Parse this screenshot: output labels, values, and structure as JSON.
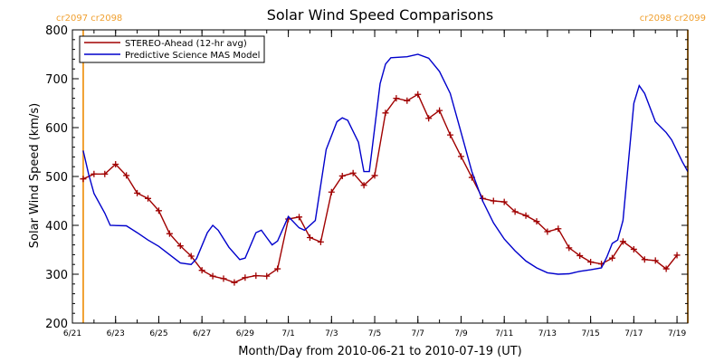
{
  "chart_data": {
    "type": "line",
    "title": "Solar Wind Speed Comparisons",
    "xlabel": "Month/Day from 2010-06-21 to 2010-07-19 (UT)",
    "ylabel": "Solar Wind Speed (km/s)",
    "xlim": [
      "2010-06-21T00:00",
      "2010-07-19T12:00"
    ],
    "ylim": [
      200,
      800
    ],
    "yticks": [
      200,
      300,
      400,
      500,
      600,
      700,
      800
    ],
    "xticks": [
      {
        "date": "2010-06-21",
        "label": "6/21"
      },
      {
        "date": "2010-06-23",
        "label": "6/23"
      },
      {
        "date": "2010-06-25",
        "label": "6/25"
      },
      {
        "date": "2010-06-27",
        "label": "6/27"
      },
      {
        "date": "2010-06-29",
        "label": "6/29"
      },
      {
        "date": "2010-07-01",
        "label": "7/1"
      },
      {
        "date": "2010-07-03",
        "label": "7/3"
      },
      {
        "date": "2010-07-05",
        "label": "7/5"
      },
      {
        "date": "2010-07-07",
        "label": "7/7"
      },
      {
        "date": "2010-07-09",
        "label": "7/9"
      },
      {
        "date": "2010-07-11",
        "label": "7/11"
      },
      {
        "date": "2010-07-13",
        "label": "7/13"
      },
      {
        "date": "2010-07-15",
        "label": "7/15"
      },
      {
        "date": "2010-07-17",
        "label": "7/17"
      },
      {
        "date": "2010-07-19",
        "label": "7/19"
      }
    ],
    "legend_position": "top-left",
    "grid": false,
    "carrington_markers": [
      {
        "date": "2010-06-21T12:00",
        "label": "cr2097 cr2098",
        "side": "left"
      },
      {
        "date": "2010-07-19T12:00",
        "label": "cr2098 cr2099",
        "side": "right"
      }
    ],
    "series": [
      {
        "name": "STEREO-Ahead (12-hr avg)",
        "color": "#a00000",
        "marker": "plus",
        "points": [
          [
            "2010-06-21T12:00",
            495
          ],
          [
            "2010-06-22T00:00",
            505
          ],
          [
            "2010-06-22T12:00",
            505
          ],
          [
            "2010-06-23T00:00",
            525
          ],
          [
            "2010-06-23T12:00",
            502
          ],
          [
            "2010-06-24T00:00",
            466
          ],
          [
            "2010-06-24T12:00",
            455
          ],
          [
            "2010-06-25T00:00",
            430
          ],
          [
            "2010-06-25T12:00",
            383
          ],
          [
            "2010-06-26T00:00",
            358
          ],
          [
            "2010-06-26T12:00",
            337
          ],
          [
            "2010-06-27T00:00",
            308
          ],
          [
            "2010-06-27T12:00",
            296
          ],
          [
            "2010-06-28T00:00",
            291
          ],
          [
            "2010-06-28T12:00",
            283
          ],
          [
            "2010-06-29T00:00",
            293
          ],
          [
            "2010-06-29T12:00",
            297
          ],
          [
            "2010-06-30T00:00",
            296
          ],
          [
            "2010-06-30T12:00",
            311
          ],
          [
            "2010-07-01T00:00",
            413
          ],
          [
            "2010-07-01T12:00",
            417
          ],
          [
            "2010-07-02T00:00",
            375
          ],
          [
            "2010-07-02T12:00",
            366
          ],
          [
            "2010-07-03T00:00",
            468
          ],
          [
            "2010-07-03T12:00",
            501
          ],
          [
            "2010-07-04T00:00",
            507
          ],
          [
            "2010-07-04T12:00",
            482
          ],
          [
            "2010-07-05T00:00",
            502
          ],
          [
            "2010-07-05T12:00",
            630
          ],
          [
            "2010-07-06T00:00",
            660
          ],
          [
            "2010-07-06T12:00",
            655
          ],
          [
            "2010-07-07T00:00",
            668
          ],
          [
            "2010-07-07T12:00",
            619
          ],
          [
            "2010-07-08T00:00",
            635
          ],
          [
            "2010-07-08T12:00",
            585
          ],
          [
            "2010-07-09T00:00",
            541
          ],
          [
            "2010-07-09T12:00",
            498
          ],
          [
            "2010-07-10T00:00",
            455
          ],
          [
            "2010-07-10T12:00",
            450
          ],
          [
            "2010-07-11T00:00",
            448
          ],
          [
            "2010-07-11T12:00",
            428
          ],
          [
            "2010-07-12T00:00",
            420
          ],
          [
            "2010-07-12T12:00",
            408
          ],
          [
            "2010-07-13T00:00",
            387
          ],
          [
            "2010-07-13T12:00",
            393
          ],
          [
            "2010-07-14T00:00",
            354
          ],
          [
            "2010-07-14T12:00",
            338
          ],
          [
            "2010-07-15T00:00",
            325
          ],
          [
            "2010-07-15T12:00",
            321
          ],
          [
            "2010-07-16T00:00",
            333
          ],
          [
            "2010-07-16T12:00",
            367
          ],
          [
            "2010-07-17T00:00",
            351
          ],
          [
            "2010-07-17T12:00",
            330
          ],
          [
            "2010-07-18T00:00",
            328
          ],
          [
            "2010-07-18T12:00",
            311
          ],
          [
            "2010-07-19T00:00",
            339
          ]
        ]
      },
      {
        "name": "Predictive Science MAS Model",
        "color": "#0000cc",
        "marker": "none",
        "points": [
          [
            "2010-06-21T12:00",
            553
          ],
          [
            "2010-06-21T18:00",
            505
          ],
          [
            "2010-06-22T00:00",
            465
          ],
          [
            "2010-06-22T12:00",
            425
          ],
          [
            "2010-06-22T18:00",
            400
          ],
          [
            "2010-06-23T12:00",
            399
          ],
          [
            "2010-06-24T00:00",
            385
          ],
          [
            "2010-06-24T12:00",
            370
          ],
          [
            "2010-06-25T00:00",
            357
          ],
          [
            "2010-06-25T12:00",
            340
          ],
          [
            "2010-06-26T00:00",
            323
          ],
          [
            "2010-06-26T12:00",
            320
          ],
          [
            "2010-06-26T18:00",
            332
          ],
          [
            "2010-06-27T06:00",
            385
          ],
          [
            "2010-06-27T12:00",
            400
          ],
          [
            "2010-06-27T18:00",
            390
          ],
          [
            "2010-06-28T06:00",
            355
          ],
          [
            "2010-06-28T18:00",
            330
          ],
          [
            "2010-06-29T00:00",
            333
          ],
          [
            "2010-06-29T12:00",
            385
          ],
          [
            "2010-06-29T18:00",
            390
          ],
          [
            "2010-06-30T00:00",
            375
          ],
          [
            "2010-06-30T06:00",
            360
          ],
          [
            "2010-06-30T12:00",
            368
          ],
          [
            "2010-07-01T00:00",
            418
          ],
          [
            "2010-07-01T12:00",
            395
          ],
          [
            "2010-07-01T18:00",
            390
          ],
          [
            "2010-07-02T06:00",
            410
          ],
          [
            "2010-07-02T18:00",
            555
          ],
          [
            "2010-07-03T06:00",
            612
          ],
          [
            "2010-07-03T12:00",
            620
          ],
          [
            "2010-07-03T18:00",
            615
          ],
          [
            "2010-07-04T06:00",
            570
          ],
          [
            "2010-07-04T12:00",
            510
          ],
          [
            "2010-07-04T18:00",
            510
          ],
          [
            "2010-07-05T06:00",
            690
          ],
          [
            "2010-07-05T12:00",
            730
          ],
          [
            "2010-07-05T18:00",
            743
          ],
          [
            "2010-07-06T12:00",
            745
          ],
          [
            "2010-07-07T00:00",
            750
          ],
          [
            "2010-07-07T12:00",
            742
          ],
          [
            "2010-07-08T00:00",
            715
          ],
          [
            "2010-07-08T12:00",
            670
          ],
          [
            "2010-07-09T00:00",
            590
          ],
          [
            "2010-07-09T12:00",
            510
          ],
          [
            "2010-07-10T00:00",
            450
          ],
          [
            "2010-07-10T12:00",
            405
          ],
          [
            "2010-07-11T00:00",
            372
          ],
          [
            "2010-07-11T12:00",
            348
          ],
          [
            "2010-07-12T00:00",
            327
          ],
          [
            "2010-07-12T12:00",
            313
          ],
          [
            "2010-07-13T00:00",
            303
          ],
          [
            "2010-07-13T12:00",
            300
          ],
          [
            "2010-07-14T00:00",
            301
          ],
          [
            "2010-07-14T12:00",
            306
          ],
          [
            "2010-07-15T00:00",
            309
          ],
          [
            "2010-07-15T12:00",
            313
          ],
          [
            "2010-07-15T18:00",
            335
          ],
          [
            "2010-07-16T00:00",
            363
          ],
          [
            "2010-07-16T06:00",
            370
          ],
          [
            "2010-07-16T12:00",
            410
          ],
          [
            "2010-07-17T00:00",
            650
          ],
          [
            "2010-07-17T06:00",
            686
          ],
          [
            "2010-07-17T12:00",
            670
          ],
          [
            "2010-07-18T00:00",
            612
          ],
          [
            "2010-07-18T12:00",
            590
          ],
          [
            "2010-07-18T18:00",
            575
          ],
          [
            "2010-07-19T06:00",
            530
          ],
          [
            "2010-07-19T12:00",
            510
          ]
        ]
      }
    ]
  }
}
